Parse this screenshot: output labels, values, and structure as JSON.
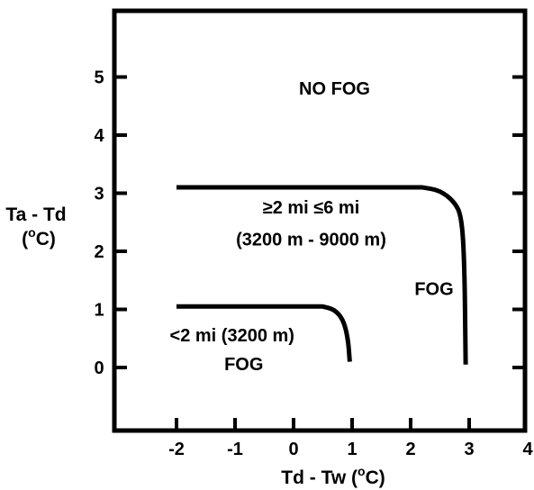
{
  "chart_data": {
    "type": "line",
    "title": "",
    "xlabel": "Td - Tw (",
    "xlabel_unit": "C)",
    "xlabel_sup": "o",
    "ylabel_line1": "Ta - Td",
    "ylabel_line2_pre": "(",
    "ylabel_line2_sup": "o",
    "ylabel_line2_post": "C)",
    "xlim": [
      -3,
      4
    ],
    "ylim": [
      -2,
      6
    ],
    "x_ticks": [
      "-2",
      "-1",
      "0",
      "1",
      "2",
      "3",
      "4"
    ],
    "y_ticks": [
      "0",
      "1",
      "2",
      "3",
      "4",
      "5"
    ],
    "x_tick_values": [
      -2,
      -1,
      0,
      1,
      2,
      3,
      4
    ],
    "y_tick_values": [
      0,
      1,
      2,
      3,
      4,
      5
    ],
    "grid": false,
    "series": [
      {
        "points": [
          [
            -2,
            3.1
          ],
          [
            2.2,
            3.1
          ],
          [
            2.5,
            3.05
          ],
          [
            2.75,
            2.85
          ],
          [
            2.87,
            2.6
          ],
          [
            2.92,
            1.8
          ],
          [
            2.94,
            0.05
          ]
        ]
      },
      {
        "points": [
          [
            -2,
            1.05
          ],
          [
            0.5,
            1.05
          ],
          [
            0.7,
            1.0
          ],
          [
            0.85,
            0.82
          ],
          [
            0.93,
            0.5
          ],
          [
            0.96,
            0.1
          ]
        ]
      }
    ],
    "annotations": [
      {
        "text": "NO FOG",
        "x": 0.7,
        "y": 4.7
      },
      {
        "text": "≥2 mi ≤6 mi",
        "x": 0.3,
        "y": 2.65
      },
      {
        "text": "(3200 m - 9000 m)",
        "x": 0.3,
        "y": 2.1
      },
      {
        "text": "FOG",
        "x": 2.4,
        "y": 1.25
      },
      {
        "text": "<2 mi (3200 m)",
        "x": -1.05,
        "y": 0.45
      },
      {
        "text": "FOG",
        "x": -0.85,
        "y": -0.05
      }
    ]
  }
}
